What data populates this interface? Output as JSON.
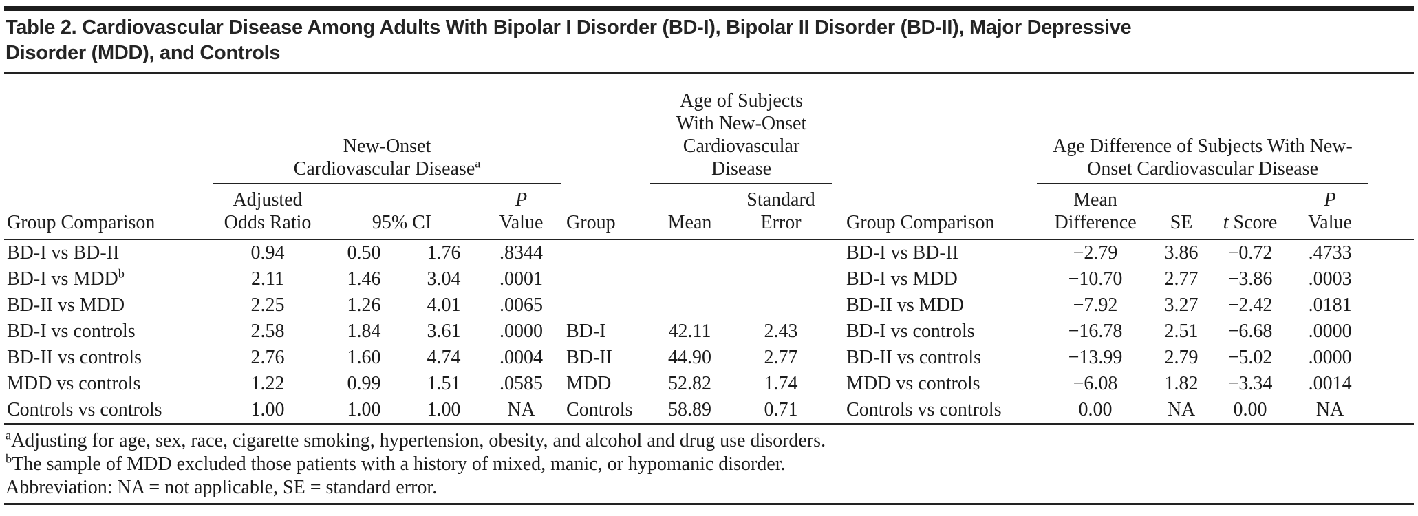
{
  "title": "Table 2. Cardiovascular Disease Among Adults With Bipolar I Disorder (BD-I), Bipolar II Disorder (BD-II), Major Depressive\nDisorder (MDD), and Controls",
  "header": {
    "spanner_new_onset": "New-Onset\nCardiovascular Disease",
    "spanner_new_onset_sup": "a",
    "spanner_age": "Age of Subjects\nWith New-Onset\nCardiovascular\nDisease",
    "spanner_age_diff": "Age Difference of Subjects With New-\nOnset Cardiovascular Disease",
    "group_comparison": "Group Comparison",
    "adjusted_odds_ratio": "Adjusted\nOdds Ratio",
    "ci_95": "95% CI",
    "p_label": "P",
    "value_label": "Value",
    "group": "Group",
    "mean": "Mean",
    "standard_error": "Standard\nError",
    "mean_difference": "Mean\nDifference",
    "se": "SE",
    "t_label": "t",
    "score_label": " Score"
  },
  "table": {
    "rows": [
      {
        "gc1": "BD-I vs BD-II",
        "gc1_sup": "",
        "aor": "0.94",
        "ci_lo": "0.50",
        "ci_hi": "1.76",
        "p1": ".8344",
        "group": "",
        "mean": "",
        "se_mid": "",
        "gc2": "BD-I vs BD-II",
        "mean_diff": "−2.79",
        "se2": "3.86",
        "t": "−0.72",
        "p2": ".4733"
      },
      {
        "gc1": "BD-I vs MDD",
        "gc1_sup": "b",
        "aor": "2.11",
        "ci_lo": "1.46",
        "ci_hi": "3.04",
        "p1": ".0001",
        "group": "",
        "mean": "",
        "se_mid": "",
        "gc2": "BD-I vs MDD",
        "mean_diff": "−10.70",
        "se2": "2.77",
        "t": "−3.86",
        "p2": ".0003"
      },
      {
        "gc1": "BD-II vs MDD",
        "gc1_sup": "",
        "aor": "2.25",
        "ci_lo": "1.26",
        "ci_hi": "4.01",
        "p1": ".0065",
        "group": "",
        "mean": "",
        "se_mid": "",
        "gc2": "BD-II vs MDD",
        "mean_diff": "−7.92",
        "se2": "3.27",
        "t": "−2.42",
        "p2": ".0181"
      },
      {
        "gc1": "BD-I vs controls",
        "gc1_sup": "",
        "aor": "2.58",
        "ci_lo": "1.84",
        "ci_hi": "3.61",
        "p1": ".0000",
        "group": "BD-I",
        "mean": "42.11",
        "se_mid": "2.43",
        "gc2": "BD-I vs controls",
        "mean_diff": "−16.78",
        "se2": "2.51",
        "t": "−6.68",
        "p2": ".0000"
      },
      {
        "gc1": "BD-II vs controls",
        "gc1_sup": "",
        "aor": "2.76",
        "ci_lo": "1.60",
        "ci_hi": "4.74",
        "p1": ".0004",
        "group": "BD-II",
        "mean": "44.90",
        "se_mid": "2.77",
        "gc2": "BD-II vs controls",
        "mean_diff": "−13.99",
        "se2": "2.79",
        "t": "−5.02",
        "p2": ".0000"
      },
      {
        "gc1": "MDD vs controls",
        "gc1_sup": "",
        "aor": "1.22",
        "ci_lo": "0.99",
        "ci_hi": "1.51",
        "p1": ".0585",
        "group": "MDD",
        "mean": "52.82",
        "se_mid": "1.74",
        "gc2": "MDD vs controls",
        "mean_diff": "−6.08",
        "se2": "1.82",
        "t": "−3.34",
        "p2": ".0014"
      },
      {
        "gc1": "Controls vs controls",
        "gc1_sup": "",
        "aor": "1.00",
        "ci_lo": "1.00",
        "ci_hi": "1.00",
        "p1": "NA",
        "group": "Controls",
        "mean": "58.89",
        "se_mid": "0.71",
        "gc2": "Controls vs controls",
        "mean_diff": "0.00",
        "se2": "NA",
        "t": "0.00",
        "p2": "NA"
      }
    ]
  },
  "footnotes": {
    "a_marker": "a",
    "a": "Adjusting for age, sex, race, cigarette smoking, hypertension, obesity, and alcohol and drug use disorders.",
    "b_marker": "b",
    "b": "The sample of MDD excluded those patients with a history of mixed, manic, or hypomanic disorder.",
    "abbreviation": "Abbreviation: NA = not applicable, SE = standard error."
  }
}
